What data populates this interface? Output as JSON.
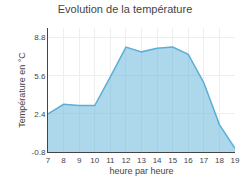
{
  "chart_data": {
    "type": "area",
    "title": "Evolution de la température",
    "xlabel": "heure par heure",
    "ylabel": "Température en °C",
    "x": [
      7,
      8,
      9,
      10,
      11,
      12,
      13,
      14,
      15,
      16,
      17,
      18,
      19
    ],
    "values": [
      2.4,
      3.2,
      3.1,
      3.1,
      5.5,
      8.0,
      7.6,
      7.9,
      8.0,
      7.4,
      5.0,
      1.5,
      -0.5
    ],
    "color": "#5bafd6",
    "xlim": [
      7,
      19
    ],
    "xticks": [
      7,
      8,
      9,
      10,
      11,
      12,
      13,
      14,
      15,
      16,
      17,
      18,
      19
    ],
    "ylim": [
      -0.8,
      9.6
    ],
    "yticks": [
      -0.8,
      2.4,
      5.6,
      8.8
    ],
    "grid": true
  }
}
